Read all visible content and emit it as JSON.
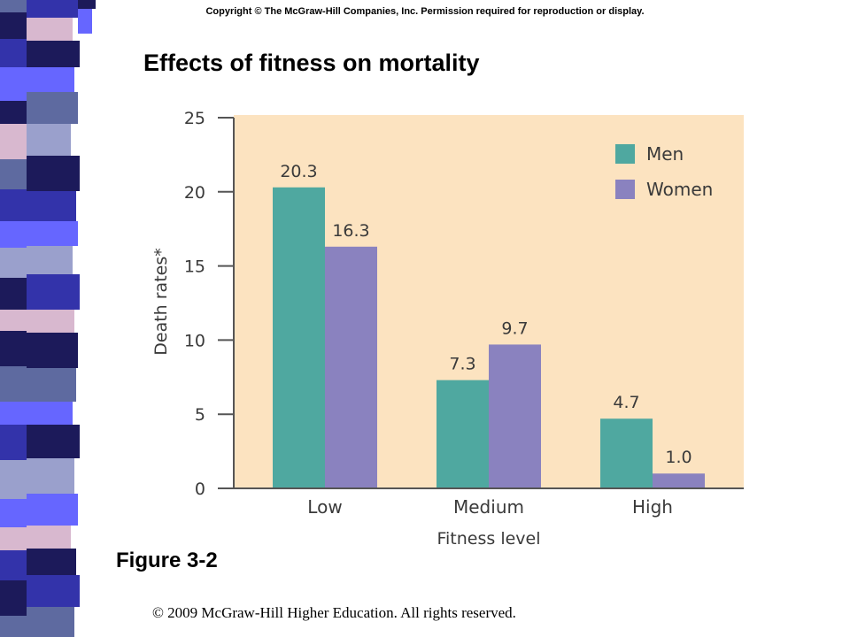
{
  "copyright_top": "Copyright © The McGraw-Hill Companies, Inc. Permission required for reproduction or display.",
  "slide_title": "Effects of fitness on mortality",
  "figure_label": "Figure 3-2",
  "footer_copyright": "© 2009 McGraw-Hill Higher Education. All rights reserved.",
  "colors": {
    "plot_background": "#fce3c0",
    "men": "#4fa8a0",
    "women": "#8a82bf",
    "axis": "#555555",
    "strip_navy": "#1c1a5a",
    "strip_blue": "#3333aa",
    "strip_periwinkle": "#6666ff",
    "strip_slate": "#5e6aa0",
    "strip_pink": "#d8b8cf",
    "strip_lavender": "#9aa0cc"
  },
  "chart_data": {
    "type": "bar",
    "title": "",
    "xlabel": "Fitness level",
    "ylabel": "Death rates*",
    "categories": [
      "Low",
      "Medium",
      "High"
    ],
    "series": [
      {
        "name": "Men",
        "values": [
          20.3,
          7.3,
          4.7
        ],
        "labels": [
          "20.3",
          "7.3",
          "4.7"
        ]
      },
      {
        "name": "Women",
        "values": [
          16.3,
          9.7,
          1.0
        ],
        "labels": [
          "16.3",
          "9.7",
          "1.0"
        ]
      }
    ],
    "ylim": [
      0,
      25
    ],
    "yticks": [
      "0",
      "5",
      "10",
      "15",
      "20",
      "25"
    ],
    "legend_position": "top-right",
    "grid": false
  }
}
